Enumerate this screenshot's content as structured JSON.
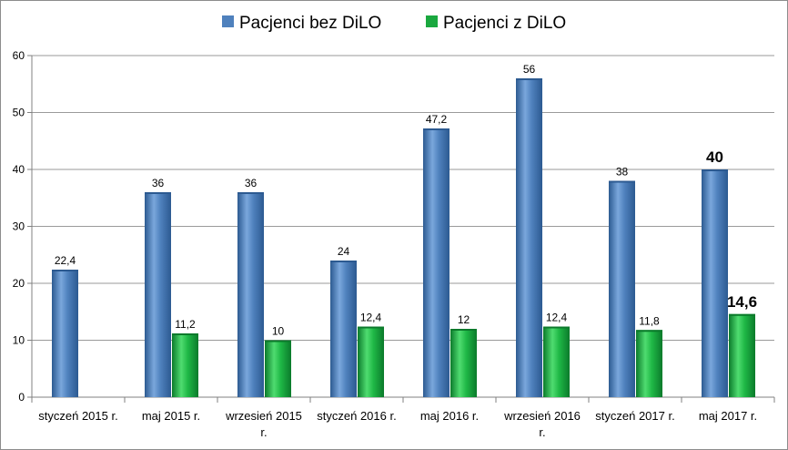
{
  "chart_data": {
    "type": "bar",
    "categories": [
      "styczeń 2015 r.",
      "maj 2015 r.",
      "wrzesień 2015 r.",
      "styczeń 2016 r.",
      "maj 2016 r.",
      "wrzesień 2016 r.",
      "styczeń 2017 r.",
      "maj 2017 r."
    ],
    "series": [
      {
        "name": "Pacjenci bez DiLO",
        "color": "#4f81bd",
        "values": [
          22.4,
          36,
          36,
          24,
          47.2,
          56,
          38,
          40
        ],
        "labels": [
          "22,4",
          "36",
          "36",
          "24",
          "47,2",
          "56",
          "38",
          "40"
        ]
      },
      {
        "name": "Pacjenci z DiLO",
        "color": "#1aa83f",
        "values": [
          null,
          11.2,
          10,
          12.4,
          12,
          12.4,
          11.8,
          14.6
        ],
        "labels": [
          "",
          "11,2",
          "10",
          "12,4",
          "12",
          "12,4",
          "11,8",
          "14,6"
        ]
      }
    ],
    "bold_labels_category_index": 7,
    "ylim": [
      0,
      60
    ],
    "yticks": [
      0,
      10,
      20,
      30,
      40,
      50,
      60
    ],
    "grid": true,
    "legend_position": "top"
  }
}
